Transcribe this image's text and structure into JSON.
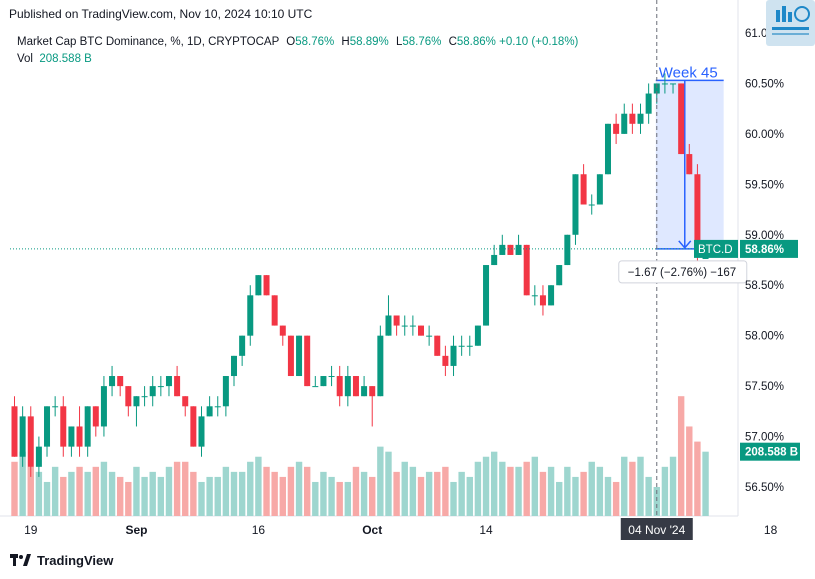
{
  "published": "Published on TradingView.com, Nov 10, 2024 10:10 UTC",
  "legend": {
    "symbol": "Market Cap BTC Dominance, %, 1D, CRYPTOCAP",
    "o_label": "O",
    "o_value": "58.76%",
    "h_label": "H",
    "h_value": "58.89%",
    "l_label": "L",
    "l_value": "58.76%",
    "c_label": "C",
    "c_value": "58.86%",
    "change": "+0.10 (+0.18%)",
    "vol_label": "Vol",
    "vol_value": "208.588 B"
  },
  "footer": {
    "brand": "TradingView"
  },
  "colors": {
    "up": "#089981",
    "down": "#f23645",
    "vol_up": "#9ed6cf",
    "vol_down": "#f7a9a7",
    "measure": "#2962ff"
  },
  "chart_data": {
    "type": "candlestick",
    "symbol": "BTC.D",
    "y_axis_labels": [
      "61.00%",
      "60.50%",
      "60.00%",
      "59.50%",
      "59.00%",
      "58.50%",
      "58.00%",
      "57.50%",
      "57.00%",
      "56.50%"
    ],
    "y_axis_values": [
      61.0,
      60.5,
      60.0,
      59.5,
      59.0,
      58.5,
      58.0,
      57.5,
      57.0,
      56.5
    ],
    "ylim": [
      56.2,
      61.2
    ],
    "x_axis_labels": [
      {
        "label": "19",
        "index": 2
      },
      {
        "label": "Sep",
        "index": 15
      },
      {
        "label": "16",
        "index": 30
      },
      {
        "label": "Oct",
        "index": 44
      },
      {
        "label": "14",
        "index": 58
      },
      {
        "label": "04 Nov '24",
        "index": 79
      },
      {
        "label": "18",
        "index": 93
      }
    ],
    "candles": [
      [
        57.3,
        57.4,
        56.8,
        56.8
      ],
      [
        56.8,
        57.3,
        56.7,
        57.2
      ],
      [
        57.2,
        57.3,
        56.6,
        56.7
      ],
      [
        56.7,
        57.0,
        56.6,
        56.9
      ],
      [
        56.9,
        57.3,
        56.8,
        57.3
      ],
      [
        57.3,
        57.4,
        57.2,
        57.3
      ],
      [
        57.3,
        57.4,
        56.8,
        56.9
      ],
      [
        56.9,
        57.1,
        56.8,
        57.1
      ],
      [
        57.1,
        57.3,
        56.8,
        56.9
      ],
      [
        56.9,
        57.3,
        56.8,
        57.3
      ],
      [
        57.3,
        57.3,
        57.0,
        57.1
      ],
      [
        57.1,
        57.6,
        57.0,
        57.5
      ],
      [
        57.5,
        57.7,
        57.4,
        57.6
      ],
      [
        57.6,
        57.6,
        57.4,
        57.5
      ],
      [
        57.5,
        57.5,
        57.2,
        57.3
      ],
      [
        57.3,
        57.4,
        57.1,
        57.4
      ],
      [
        57.4,
        57.5,
        57.3,
        57.4
      ],
      [
        57.4,
        57.6,
        57.3,
        57.5
      ],
      [
        57.5,
        57.6,
        57.4,
        57.5
      ],
      [
        57.5,
        57.6,
        57.4,
        57.6
      ],
      [
        57.6,
        57.7,
        57.4,
        57.4
      ],
      [
        57.4,
        57.4,
        57.2,
        57.3
      ],
      [
        57.3,
        57.3,
        56.9,
        56.9
      ],
      [
        56.9,
        57.3,
        56.8,
        57.2
      ],
      [
        57.2,
        57.4,
        57.2,
        57.3
      ],
      [
        57.3,
        57.4,
        57.2,
        57.3
      ],
      [
        57.3,
        57.6,
        57.2,
        57.6
      ],
      [
        57.6,
        57.8,
        57.5,
        57.8
      ],
      [
        57.8,
        58.0,
        57.7,
        58.0
      ],
      [
        58.0,
        58.5,
        57.9,
        58.4
      ],
      [
        58.4,
        58.6,
        58.4,
        58.6
      ],
      [
        58.6,
        58.6,
        58.4,
        58.4
      ],
      [
        58.4,
        58.4,
        58.1,
        58.1
      ],
      [
        58.1,
        58.1,
        57.9,
        58.0
      ],
      [
        58.0,
        58.0,
        57.6,
        57.6
      ],
      [
        57.6,
        58.0,
        57.6,
        58.0
      ],
      [
        58.0,
        58.0,
        57.5,
        57.5
      ],
      [
        57.5,
        57.6,
        57.5,
        57.5
      ],
      [
        57.5,
        57.6,
        57.5,
        57.6
      ],
      [
        57.6,
        57.7,
        57.5,
        57.6
      ],
      [
        57.6,
        57.7,
        57.3,
        57.4
      ],
      [
        57.4,
        57.7,
        57.3,
        57.6
      ],
      [
        57.6,
        57.6,
        57.4,
        57.4
      ],
      [
        57.4,
        57.6,
        57.4,
        57.5
      ],
      [
        57.5,
        57.5,
        57.1,
        57.4
      ],
      [
        57.4,
        58.1,
        57.4,
        58.0
      ],
      [
        58.0,
        58.4,
        58.0,
        58.2
      ],
      [
        58.2,
        58.2,
        58.0,
        58.1
      ],
      [
        58.1,
        58.2,
        58.0,
        58.1
      ],
      [
        58.1,
        58.2,
        58.0,
        58.1
      ],
      [
        58.1,
        58.1,
        58.0,
        58.0
      ],
      [
        58.0,
        58.1,
        57.9,
        58.0
      ],
      [
        58.0,
        58.0,
        57.8,
        57.8
      ],
      [
        57.8,
        57.9,
        57.6,
        57.7
      ],
      [
        57.7,
        58.0,
        57.6,
        57.9
      ],
      [
        57.9,
        58.0,
        57.8,
        57.9
      ],
      [
        57.9,
        58.0,
        57.8,
        57.9
      ],
      [
        57.9,
        58.1,
        57.9,
        58.1
      ],
      [
        58.1,
        58.7,
        58.1,
        58.7
      ],
      [
        58.7,
        58.9,
        58.7,
        58.8
      ],
      [
        58.8,
        59.0,
        58.8,
        58.9
      ],
      [
        58.9,
        58.9,
        58.8,
        58.8
      ],
      [
        58.8,
        59.0,
        58.8,
        58.9
      ],
      [
        58.9,
        58.9,
        58.4,
        58.4
      ],
      [
        58.4,
        58.5,
        58.3,
        58.4
      ],
      [
        58.4,
        58.5,
        58.2,
        58.3
      ],
      [
        58.3,
        58.5,
        58.3,
        58.5
      ],
      [
        58.5,
        58.7,
        58.5,
        58.7
      ],
      [
        58.7,
        59.0,
        58.7,
        59.0
      ],
      [
        59.0,
        59.6,
        58.9,
        59.6
      ],
      [
        59.6,
        59.7,
        59.3,
        59.3
      ],
      [
        59.3,
        59.4,
        59.2,
        59.3
      ],
      [
        59.3,
        59.6,
        59.3,
        59.6
      ],
      [
        59.6,
        60.1,
        59.6,
        60.1
      ],
      [
        60.1,
        60.2,
        59.9,
        60.0
      ],
      [
        60.0,
        60.3,
        60.0,
        60.2
      ],
      [
        60.2,
        60.3,
        60.0,
        60.1
      ],
      [
        60.1,
        60.3,
        60.0,
        60.2
      ],
      [
        60.2,
        60.5,
        60.1,
        60.4
      ],
      [
        60.4,
        60.5,
        60.3,
        60.5
      ],
      [
        60.5,
        60.6,
        60.4,
        60.5
      ],
      [
        60.5,
        60.5,
        60.4,
        60.5
      ],
      [
        60.5,
        60.5,
        59.8,
        59.8
      ],
      [
        59.8,
        59.9,
        59.6,
        59.6
      ],
      [
        59.6,
        59.7,
        58.7,
        58.8
      ],
      [
        58.76,
        58.89,
        58.76,
        58.86
      ]
    ],
    "volumes": [
      56.75,
      56.85,
      56.7,
      56.65,
      56.55,
      56.7,
      56.6,
      56.65,
      56.7,
      56.65,
      56.7,
      56.75,
      56.65,
      56.6,
      56.55,
      56.7,
      56.6,
      56.65,
      56.6,
      56.7,
      56.75,
      56.75,
      56.65,
      56.55,
      56.6,
      56.6,
      56.7,
      56.65,
      56.65,
      56.75,
      56.8,
      56.7,
      56.65,
      56.6,
      56.7,
      56.75,
      56.7,
      56.55,
      56.65,
      56.6,
      56.55,
      56.55,
      56.7,
      56.65,
      56.6,
      56.9,
      56.85,
      56.65,
      56.75,
      56.7,
      56.6,
      56.65,
      56.65,
      56.7,
      56.55,
      56.65,
      56.6,
      56.75,
      56.8,
      56.85,
      56.75,
      56.7,
      56.7,
      56.75,
      56.8,
      56.65,
      56.7,
      56.55,
      56.7,
      56.6,
      56.65,
      56.75,
      56.7,
      56.6,
      56.55,
      56.8,
      56.75,
      56.8,
      56.6,
      56.5,
      56.7,
      56.8,
      57.4,
      57.1,
      56.95,
      56.85
    ],
    "current_price_label": "58.86%",
    "symbol_label": "BTC.D",
    "volume_label": "208.588 B",
    "measure": {
      "label": "Week 45",
      "stats": "−1.67 (−2.76%) −167",
      "from_index": 79,
      "to_index": 86,
      "from_value": 60.53,
      "to_value": 58.86
    }
  }
}
